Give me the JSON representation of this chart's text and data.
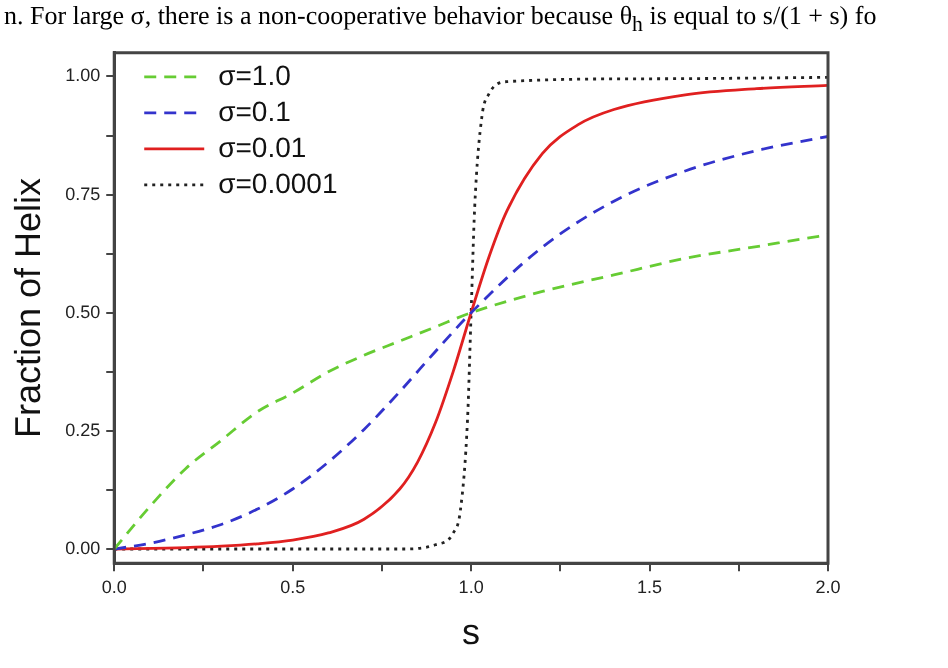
{
  "chart_data": {
    "type": "line",
    "xlabel": "s",
    "ylabel": "Fraction of Helix",
    "annotations": [
      "n. For large σ, there is a non-cooperative behavior because θ$_{h}$ is equal to s/(1 + s) fo"
    ],
    "xlim": [
      0,
      2
    ],
    "ylim": [
      -0.03,
      1.05
    ],
    "xticks": [
      {
        "value": 0,
        "label": "0.0"
      },
      {
        "value": 0.25,
        "label": null
      },
      {
        "value": 0.5,
        "label": "0.5"
      },
      {
        "value": 0.75,
        "label": null
      },
      {
        "value": 1,
        "label": "1.0"
      },
      {
        "value": 1.25,
        "label": null
      },
      {
        "value": 1.5,
        "label": "1.5"
      },
      {
        "value": 1.75,
        "label": null
      },
      {
        "value": 2,
        "label": "2.0"
      }
    ],
    "yticks": [
      {
        "value": 0,
        "label": "0.00"
      },
      {
        "value": 0.125,
        "label": null
      },
      {
        "value": 0.25,
        "label": "0.25"
      },
      {
        "value": 0.375,
        "label": null
      },
      {
        "value": 0.5,
        "label": "0.50"
      },
      {
        "value": 0.625,
        "label": null
      },
      {
        "value": 0.75,
        "label": "0.75"
      },
      {
        "value": 0.875,
        "label": null
      },
      {
        "value": 1,
        "label": "1.00"
      }
    ],
    "grid": false,
    "legend": "top left",
    "marker": "none",
    "series": [
      {
        "name": "σ=1.0",
        "color": "#66cc33",
        "line_style": "dashed",
        "x": [
          0,
          0.1,
          0.2,
          0.3,
          0.4,
          0.5,
          0.6,
          0.7,
          0.8,
          0.9,
          1,
          1.2,
          1.4,
          1.6,
          1.8,
          2
        ],
        "values": [
          0,
          0.09,
          0.17,
          0.23,
          0.29,
          0.33,
          0.375,
          0.41,
          0.44,
          0.47,
          0.5,
          0.545,
          0.58,
          0.615,
          0.64,
          0.665
        ]
      },
      {
        "name": "σ=0.1",
        "color": "#3333cc",
        "line_style": "dashed",
        "x": [
          0,
          0.1,
          0.2,
          0.3,
          0.4,
          0.5,
          0.6,
          0.7,
          0.8,
          0.9,
          1,
          1.2,
          1.4,
          1.6,
          1.8,
          2
        ],
        "values": [
          0,
          0.012,
          0.03,
          0.052,
          0.084,
          0.127,
          0.184,
          0.253,
          0.333,
          0.418,
          0.5,
          0.639,
          0.736,
          0.8,
          0.843,
          0.873
        ]
      },
      {
        "name": "σ=0.01",
        "color": "#e02020",
        "line_style": "solid",
        "x": [
          0,
          0.2,
          0.3,
          0.4,
          0.5,
          0.6,
          0.7,
          0.8,
          0.85,
          0.9,
          0.95,
          1,
          1.05,
          1.1,
          1.2,
          1.3,
          1.4,
          1.6,
          1.8,
          2
        ],
        "values": [
          0,
          0.003,
          0.006,
          0.011,
          0.019,
          0.034,
          0.063,
          0.127,
          0.184,
          0.267,
          0.376,
          0.5,
          0.618,
          0.715,
          0.837,
          0.898,
          0.93,
          0.961,
          0.974,
          0.981
        ]
      },
      {
        "name": "σ=0.0001",
        "color": "#222222",
        "line_style": "dotted",
        "x": [
          0,
          0.8,
          0.9,
          0.95,
          0.97,
          0.99,
          1,
          1.01,
          1.03,
          1.05,
          1.1,
          1.5,
          2
        ],
        "values": [
          0,
          0,
          0.009,
          0.034,
          0.082,
          0.275,
          0.5,
          0.723,
          0.914,
          0.963,
          0.989,
          0.995,
          0.998
        ]
      }
    ]
  }
}
